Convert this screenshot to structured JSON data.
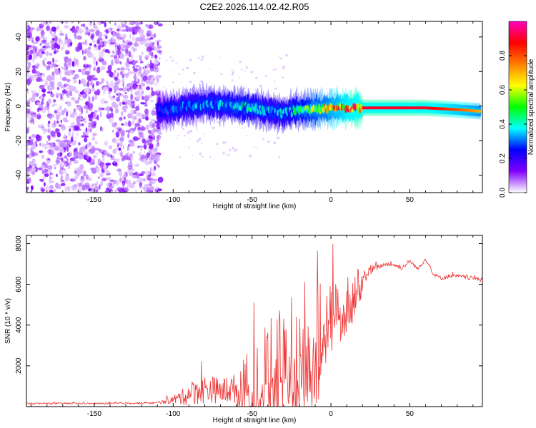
{
  "chart_data": [
    {
      "type": "heatmap",
      "title": "C2E2.2026.114.02.42.R05",
      "xlabel": "Height of straight line (km)",
      "ylabel": "Frequency (Hz)",
      "xlim": [
        -193,
        96
      ],
      "ylim": [
        -50,
        49
      ],
      "xticks": [
        -150,
        -100,
        -50,
        0,
        50
      ],
      "yticks": [
        -40,
        -20,
        0,
        20,
        40
      ],
      "colorbar": {
        "label": "Normalized spectral amplitude",
        "range": [
          0,
          1
        ],
        "ticks": [
          0.0,
          0.2,
          0.4,
          0.6,
          0.8
        ],
        "tick_labels": [
          "0.0",
          "0.2",
          "0.4",
          "0.6",
          "0.8"
        ],
        "colors": [
          "#ffffff",
          "#7f00ff",
          "#0000ff",
          "#00ffff",
          "#00ff00",
          "#ffff00",
          "#ff7f00",
          "#ff0000",
          "#ff00bf"
        ]
      },
      "noise_region_x": [
        -193,
        -108
      ],
      "ridge": {
        "x": [
          -110,
          -100,
          -90,
          -80,
          -70,
          -60,
          -50,
          -40,
          -30,
          -20,
          -10,
          0,
          10,
          20,
          40,
          60,
          80,
          95
        ],
        "frequency": [
          -3,
          -2,
          0,
          1,
          1,
          0,
          -1,
          -3,
          -4,
          -2,
          -2,
          -1,
          -1,
          -1,
          -1,
          -1,
          -2,
          -3
        ],
        "amplitude": [
          0.2,
          0.3,
          0.3,
          0.35,
          0.35,
          0.4,
          0.4,
          0.35,
          0.35,
          0.45,
          0.6,
          0.7,
          0.85,
          0.9,
          0.9,
          0.9,
          0.8,
          0.7
        ]
      }
    },
    {
      "type": "line",
      "xlabel": "Height of straight line (km)",
      "ylabel": "SNR (10 * v/v)",
      "xlim": [
        -193,
        96
      ],
      "ylim": [
        0,
        8400
      ],
      "xticks": [
        -150,
        -100,
        -50,
        0,
        50
      ],
      "yticks": [
        2000,
        4000,
        6000,
        8000
      ],
      "series": [
        {
          "name": "SNR",
          "color": "#ee3333",
          "x": [
            -193,
            -180,
            -160,
            -140,
            -120,
            -110,
            -102,
            -95,
            -90,
            -85,
            -80,
            -75,
            -70,
            -65,
            -60,
            -55,
            -50,
            -45,
            -40,
            -35,
            -30,
            -25,
            -20,
            -15,
            -10,
            -5,
            0,
            5,
            10,
            15,
            20,
            25,
            30,
            35,
            40,
            45,
            50,
            55,
            60,
            65,
            70,
            75,
            80,
            85,
            90,
            96
          ],
          "values": [
            150,
            150,
            150,
            150,
            170,
            180,
            300,
            450,
            600,
            800,
            850,
            850,
            750,
            800,
            900,
            1000,
            1200,
            1500,
            1700,
            2400,
            2300,
            2600,
            2800,
            3300,
            2600,
            4100,
            4600,
            4700,
            5200,
            5400,
            6300,
            6700,
            6850,
            7000,
            6950,
            6800,
            7150,
            6750,
            7250,
            6500,
            6300,
            6400,
            6400,
            6350,
            6300,
            6200
          ],
          "amplitude": [
            80,
            80,
            80,
            80,
            80,
            100,
            300,
            700,
            1100,
            1400,
            1400,
            1300,
            1300,
            1300,
            1500,
            1700,
            2000,
            2300,
            2600,
            2800,
            2800,
            2900,
            2900,
            3000,
            2700,
            2000,
            1600,
            1400,
            1300,
            1100,
            700,
            500,
            250,
            200,
            200,
            200,
            200,
            200,
            200,
            200,
            200,
            200,
            200,
            200,
            200,
            200
          ]
        }
      ]
    }
  ]
}
